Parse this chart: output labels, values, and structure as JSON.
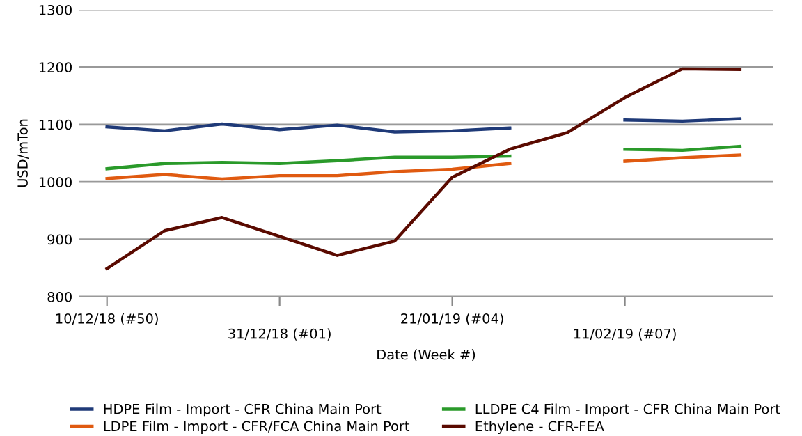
{
  "chart_data": {
    "type": "line",
    "xlabel": "Date (Week #)",
    "ylabel": "USD/mTon",
    "categories": [
      "10/12/18 (#50)",
      null,
      null,
      "31/12/18 (#01)",
      null,
      null,
      "21/01/19 (#04)",
      null,
      null,
      "11/02/19 (#07)",
      null,
      null
    ],
    "series": [
      {
        "name": "HDPE Film - Import - CFR China Main Port",
        "color": "#1f3a78",
        "values": [
          1096,
          1089,
          1101,
          1091,
          1099,
          1087,
          1089,
          1094,
          null,
          1108,
          1106,
          1110
        ]
      },
      {
        "name": "LDPE Film - Import - CFR/FCA China Main Port",
        "color": "#e05a10",
        "values": [
          1006,
          1013,
          1005,
          1011,
          1011,
          1018,
          1022,
          1032,
          null,
          1036,
          1042,
          1047
        ]
      },
      {
        "name": "LLDPE C4 Film - Import - CFR China Main Port",
        "color": "#2a9a2a",
        "values": [
          1023,
          1032,
          1034,
          1032,
          1037,
          1043,
          1043,
          1045,
          null,
          1057,
          1055,
          1062
        ]
      },
      {
        "name": "Ethylene - CFR-FEA",
        "color": "#5a0a00",
        "values": [
          849,
          915,
          938,
          905,
          872,
          897,
          1008,
          1057,
          1086,
          1147,
          1197,
          1196
        ]
      }
    ],
    "ylim": [
      800,
      1300
    ],
    "yticks": [
      800,
      900,
      1000,
      1100,
      1200,
      1300
    ],
    "grid": "y",
    "legend": "bottom",
    "marker": "none",
    "line_style": "solid"
  }
}
